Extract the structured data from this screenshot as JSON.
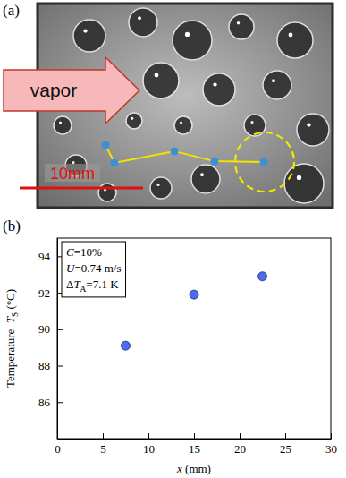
{
  "figure_a": {
    "panel_label": "(a)",
    "arrow_label": "vapor",
    "scale_label": "10mm"
  },
  "chart_data": {
    "type": "scatter",
    "panel_label": "(b)",
    "x": [
      7.5,
      15,
      22.5
    ],
    "values": [
      89.1,
      91.9,
      92.9
    ],
    "color": "#4b6cf0",
    "marker": "circle",
    "xlim": [
      0,
      30
    ],
    "ylim": [
      84,
      95
    ],
    "xticks": [
      0,
      5,
      10,
      15,
      20,
      25,
      30
    ],
    "yticks": [
      86,
      88,
      90,
      92,
      94
    ],
    "x_label": [
      {
        "text": "x",
        "italic": true
      },
      {
        "text": " (mm)"
      }
    ],
    "y_label": [
      {
        "text": "Temperature  "
      },
      {
        "text": "T",
        "italic": true
      },
      {
        "text": "S",
        "sub": true
      },
      {
        "text": " (°C)"
      }
    ],
    "annotation": [
      [
        {
          "text": "C",
          "italic": true
        },
        {
          "text": "=10%"
        }
      ],
      [
        {
          "text": "U",
          "italic": true
        },
        {
          "text": "=0.74 m/s"
        }
      ],
      [
        {
          "text": "Δ"
        },
        {
          "text": "T",
          "italic": true
        },
        {
          "text": "A",
          "sub": true
        },
        {
          "text": "=7.1 K"
        }
      ]
    ]
  }
}
